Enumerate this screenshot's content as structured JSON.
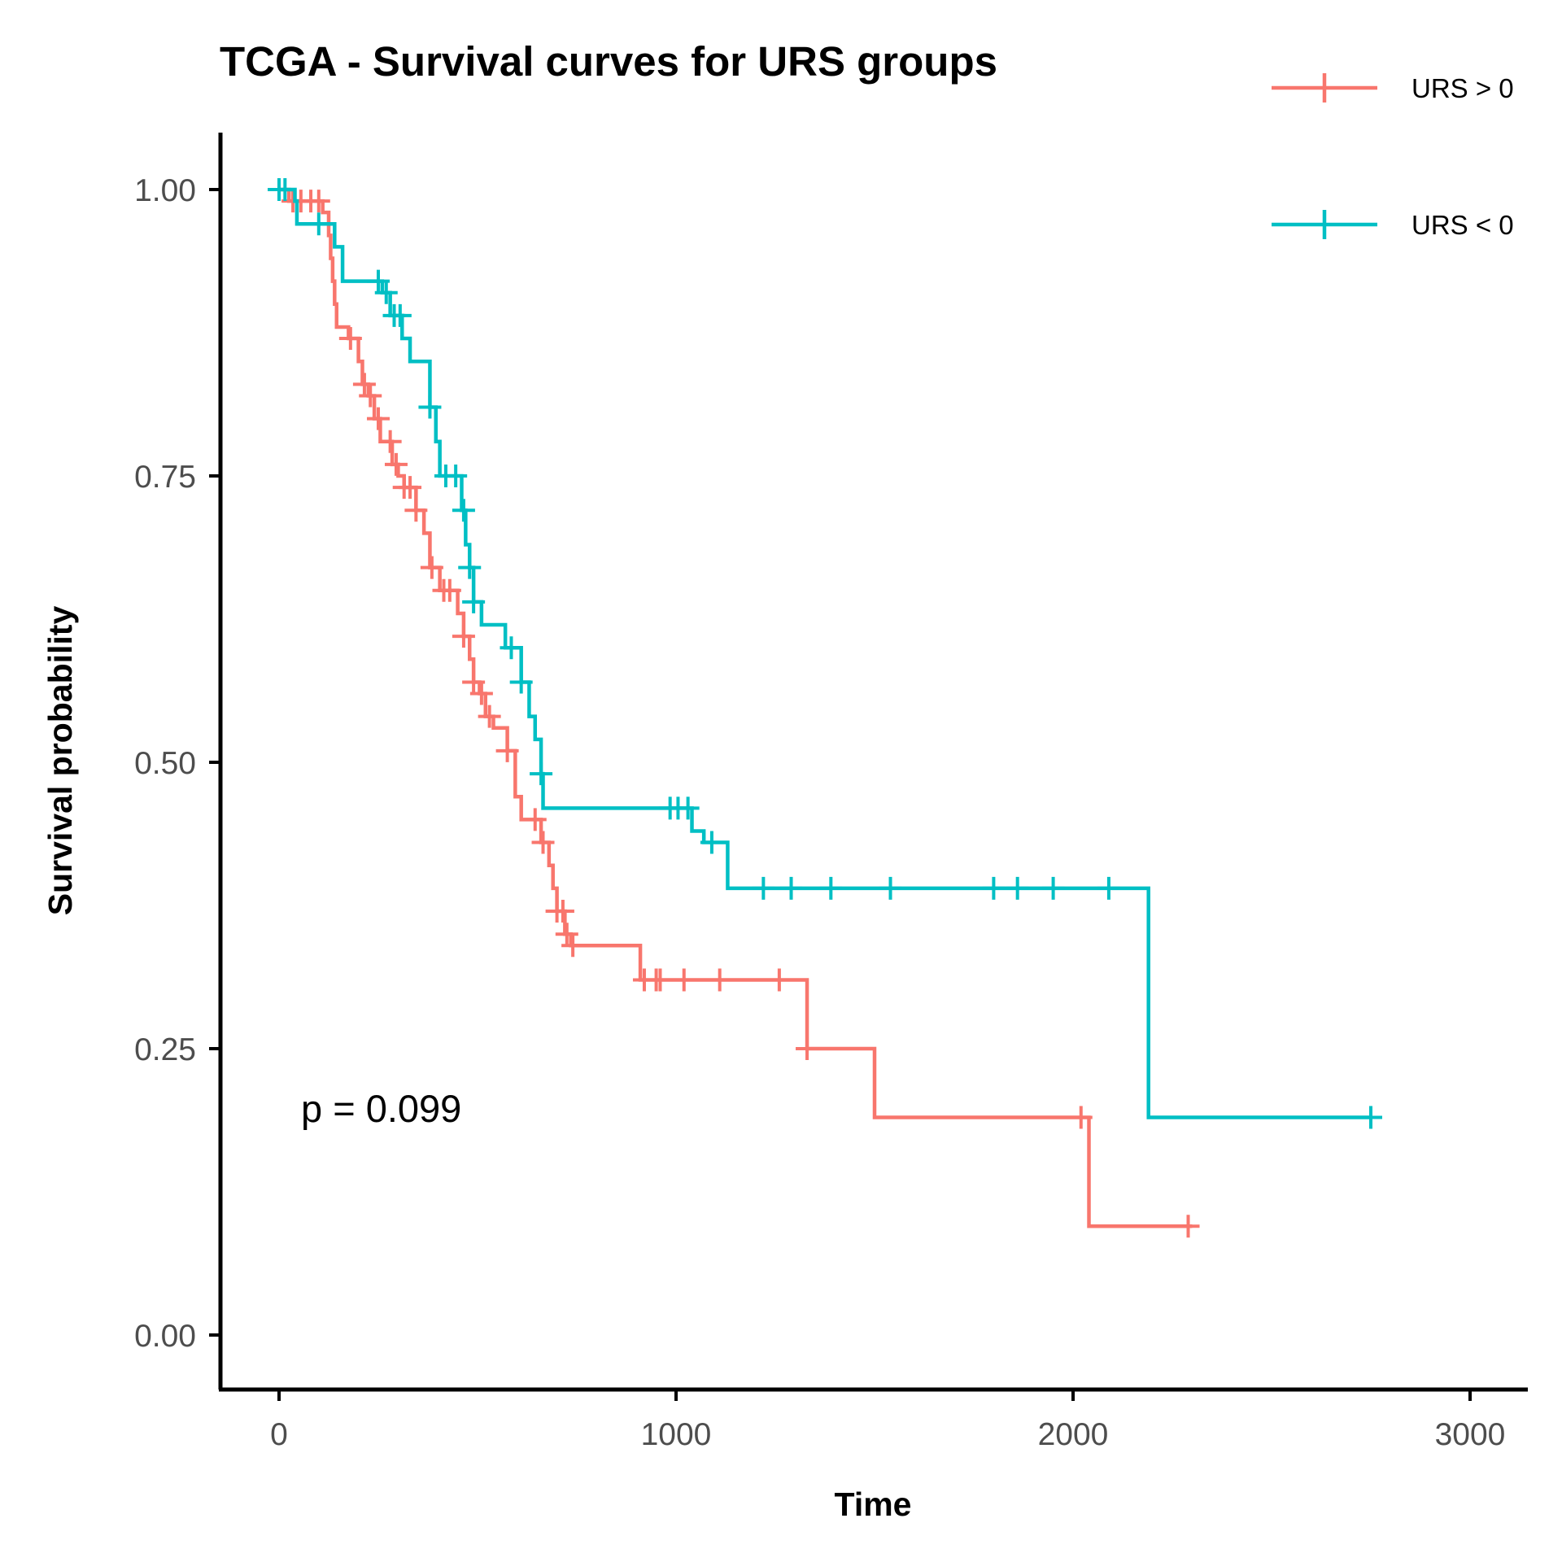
{
  "chart_data": {
    "type": "line",
    "subtype": "kaplan-meier step curves",
    "title": "TCGA - Survival curves for URS groups",
    "xlabel": "Time",
    "ylabel": "Survival probability",
    "xlim": [
      -150,
      3150
    ],
    "ylim": [
      -0.05,
      1.05
    ],
    "x_ticks": [
      0,
      1000,
      2000,
      3000
    ],
    "x_tick_labels": [
      "0",
      "1000",
      "2000",
      "3000"
    ],
    "y_ticks": [
      0,
      0.25,
      0.5,
      0.75,
      1.0
    ],
    "y_tick_labels": [
      "0.00",
      "0.25",
      "0.50",
      "0.75",
      "1.00"
    ],
    "grid": false,
    "legend_position": "top-right",
    "annotation": "p = 0.099",
    "series": [
      {
        "name": "URS > 0",
        "color": "#F8766D",
        "steps": [
          [
            0,
            1.0
          ],
          [
            25,
            0.99
          ],
          [
            110,
            0.98
          ],
          [
            125,
            0.96
          ],
          [
            130,
            0.94
          ],
          [
            135,
            0.92
          ],
          [
            140,
            0.9
          ],
          [
            145,
            0.88
          ],
          [
            175,
            0.87
          ],
          [
            200,
            0.85
          ],
          [
            210,
            0.83
          ],
          [
            225,
            0.82
          ],
          [
            240,
            0.8
          ],
          [
            255,
            0.78
          ],
          [
            285,
            0.76
          ],
          [
            300,
            0.75
          ],
          [
            315,
            0.74
          ],
          [
            345,
            0.72
          ],
          [
            365,
            0.7
          ],
          [
            380,
            0.67
          ],
          [
            405,
            0.65
          ],
          [
            450,
            0.63
          ],
          [
            465,
            0.61
          ],
          [
            480,
            0.59
          ],
          [
            490,
            0.57
          ],
          [
            505,
            0.56
          ],
          [
            520,
            0.54
          ],
          [
            540,
            0.53
          ],
          [
            575,
            0.51
          ],
          [
            595,
            0.47
          ],
          [
            610,
            0.45
          ],
          [
            660,
            0.43
          ],
          [
            680,
            0.41
          ],
          [
            690,
            0.39
          ],
          [
            700,
            0.37
          ],
          [
            720,
            0.35
          ],
          [
            735,
            0.34
          ],
          [
            910,
            0.31
          ],
          [
            1330,
            0.25
          ],
          [
            1500,
            0.19
          ],
          [
            2040,
            0.095
          ],
          [
            2300,
            0.095
          ]
        ],
        "censor_x": [
          35,
          55,
          80,
          100,
          180,
          215,
          230,
          250,
          280,
          295,
          315,
          330,
          345,
          385,
          415,
          430,
          465,
          490,
          510,
          530,
          575,
          645,
          665,
          700,
          715,
          725,
          740,
          920,
          950,
          960,
          1020,
          1110,
          1260,
          1330,
          2020,
          2290
        ]
      },
      {
        "name": "URS < 0",
        "color": "#00BFC4",
        "steps": [
          [
            0,
            1.0
          ],
          [
            40,
            0.99
          ],
          [
            45,
            0.97
          ],
          [
            140,
            0.95
          ],
          [
            160,
            0.92
          ],
          [
            260,
            0.91
          ],
          [
            280,
            0.89
          ],
          [
            310,
            0.87
          ],
          [
            330,
            0.85
          ],
          [
            380,
            0.81
          ],
          [
            395,
            0.78
          ],
          [
            405,
            0.75
          ],
          [
            460,
            0.72
          ],
          [
            470,
            0.69
          ],
          [
            480,
            0.67
          ],
          [
            490,
            0.64
          ],
          [
            510,
            0.62
          ],
          [
            570,
            0.6
          ],
          [
            610,
            0.57
          ],
          [
            630,
            0.54
          ],
          [
            645,
            0.52
          ],
          [
            660,
            0.49
          ],
          [
            665,
            0.46
          ],
          [
            1040,
            0.44
          ],
          [
            1070,
            0.43
          ],
          [
            1130,
            0.39
          ],
          [
            2190,
            0.19
          ],
          [
            2750,
            0.19
          ]
        ],
        "censor_x": [
          0,
          15,
          100,
          250,
          270,
          290,
          305,
          380,
          420,
          445,
          465,
          480,
          490,
          585,
          610,
          660,
          985,
          1005,
          1030,
          1090,
          1220,
          1290,
          1390,
          1540,
          1800,
          1860,
          1950,
          2090,
          2750
        ]
      }
    ]
  }
}
